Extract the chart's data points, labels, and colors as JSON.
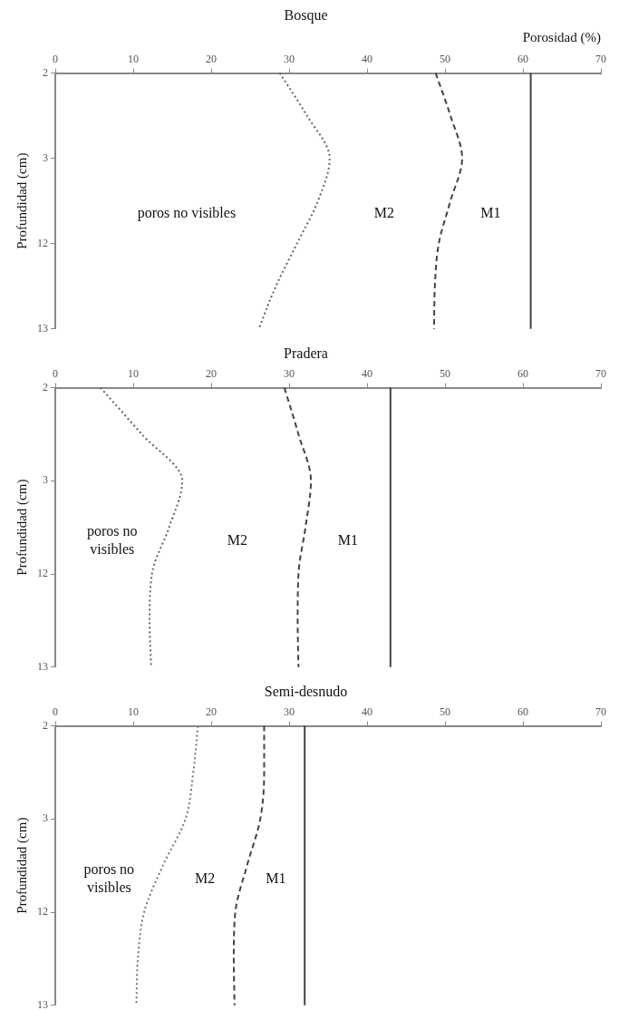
{
  "chart_data": [
    {
      "type": "line",
      "orientation": "horizontal",
      "title": "Bosque",
      "xlabel": "Porosidad (%)",
      "ylabel": "Profundidad (cm)",
      "categories": [
        "2",
        null,
        "3",
        null,
        "12",
        null,
        "13"
      ],
      "xlim": [
        0,
        70
      ],
      "xticks": [
        0,
        10,
        20,
        30,
        40,
        50,
        60,
        70
      ],
      "grid": false,
      "marker": "none",
      "series": [
        {
          "color": "#666666",
          "line_style": "dotted",
          "values": [
            28.8,
            32.3,
            35.2,
            33.7,
            31.0,
            28.3,
            26.1
          ]
        },
        {
          "color": "#444444",
          "line_style": "dashed",
          "values": [
            48.8,
            50.7,
            52.2,
            50.7,
            49.2,
            48.7,
            48.6
          ]
        }
      ],
      "ref_lines": [
        {
          "axis": "x",
          "value": 61,
          "color": "#444444",
          "line_style": "solid"
        }
      ],
      "annotations": [
        "poros no visibles",
        "M2",
        "M1"
      ]
    },
    {
      "type": "line",
      "orientation": "horizontal",
      "title": "Pradera",
      "ylabel": "Profundidad (cm)",
      "categories": [
        "2",
        null,
        "3",
        null,
        "12",
        null,
        "13"
      ],
      "xlim": [
        0,
        70
      ],
      "xticks": [
        0,
        10,
        20,
        30,
        40,
        50,
        60,
        70
      ],
      "grid": false,
      "marker": "none",
      "series": [
        {
          "color": "#666666",
          "line_style": "dotted",
          "values": [
            5.8,
            11.1,
            16.3,
            14.6,
            12.4,
            12.1,
            12.3
          ]
        },
        {
          "color": "#444444",
          "line_style": "dashed",
          "values": [
            29.4,
            31.2,
            32.8,
            32.1,
            31.2,
            31.1,
            31.2
          ]
        }
      ],
      "ref_lines": [
        {
          "axis": "x",
          "value": 43,
          "color": "#444444",
          "line_style": "solid"
        }
      ],
      "annotations": [
        "poros no visibles",
        "M2",
        "M1"
      ]
    },
    {
      "type": "line",
      "orientation": "horizontal",
      "title": "Semi-desnudo",
      "ylabel": "Profundidad (cm)",
      "categories": [
        "2",
        null,
        "3",
        null,
        "12",
        null,
        "13"
      ],
      "xlim": [
        0,
        70
      ],
      "xticks": [
        0,
        10,
        20,
        30,
        40,
        50,
        60,
        70
      ],
      "grid": false,
      "marker": "none",
      "series": [
        {
          "color": "#777777",
          "line_style": "dotted",
          "values": [
            18.3,
            17.7,
            16.7,
            13.8,
            11.4,
            10.6,
            10.4
          ]
        },
        {
          "color": "#444444",
          "line_style": "dashed",
          "values": [
            26.8,
            26.8,
            26.3,
            24.6,
            23.1,
            22.9,
            23.0
          ]
        }
      ],
      "ref_lines": [
        {
          "axis": "x",
          "value": 32,
          "color": "#444444",
          "line_style": "solid"
        }
      ],
      "annotations": [
        "poros no visibles",
        "M2",
        "M1"
      ]
    }
  ]
}
